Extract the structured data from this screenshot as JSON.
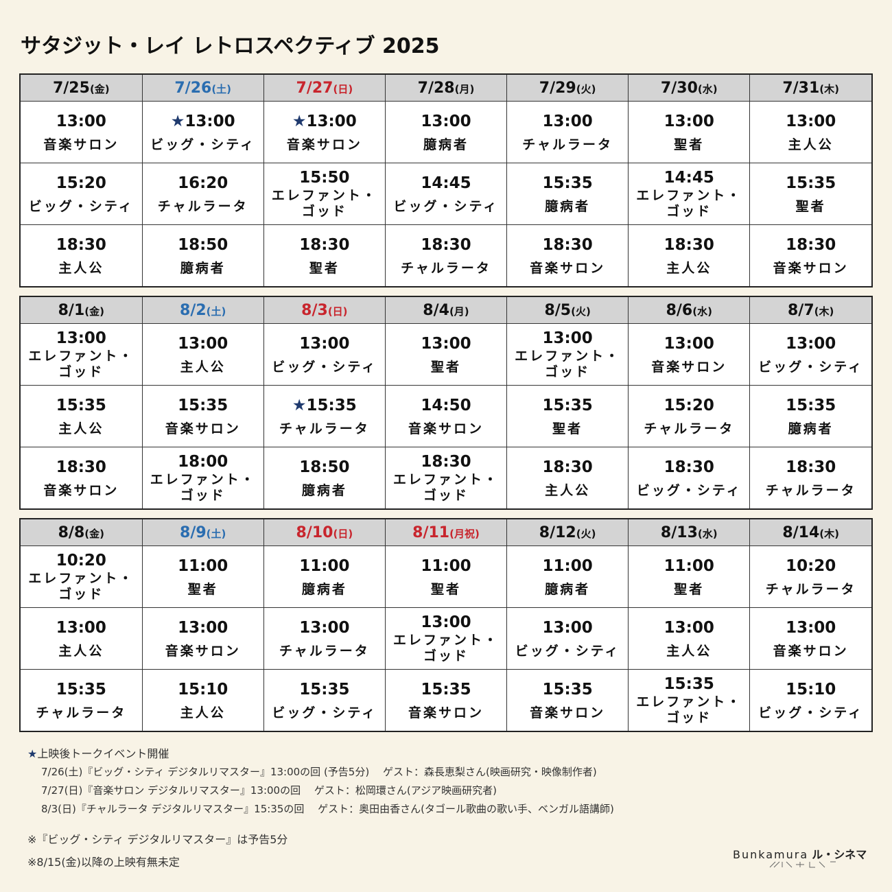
{
  "title": "サタジット・レイ レトロスペクティブ 2025",
  "weeks": [
    {
      "days": [
        {
          "date": "7/25",
          "dow": "(金)",
          "type": "weekday"
        },
        {
          "date": "7/26",
          "dow": "(土)",
          "type": "sat"
        },
        {
          "date": "7/27",
          "dow": "(日)",
          "type": "sun"
        },
        {
          "date": "7/28",
          "dow": "(月)",
          "type": "weekday"
        },
        {
          "date": "7/29",
          "dow": "(火)",
          "type": "weekday"
        },
        {
          "date": "7/30",
          "dow": "(水)",
          "type": "weekday"
        },
        {
          "date": "7/31",
          "dow": "(木)",
          "type": "weekday"
        }
      ],
      "slots": [
        [
          {
            "star": "",
            "time": "13:00",
            "title": [
              "音楽サロン"
            ]
          },
          {
            "star": "★",
            "time": "13:00",
            "title": [
              "ビッグ・シティ"
            ]
          },
          {
            "star": "★",
            "time": "13:00",
            "title": [
              "音楽サロン"
            ]
          },
          {
            "star": "",
            "time": "13:00",
            "title": [
              "臆病者"
            ]
          },
          {
            "star": "",
            "time": "13:00",
            "title": [
              "チャルラータ"
            ]
          },
          {
            "star": "",
            "time": "13:00",
            "title": [
              "聖者"
            ]
          },
          {
            "star": "",
            "time": "13:00",
            "title": [
              "主人公"
            ]
          }
        ],
        [
          {
            "star": "",
            "time": "15:20",
            "title": [
              "ビッグ・シティ"
            ]
          },
          {
            "star": "",
            "time": "16:20",
            "title": [
              "チャルラータ"
            ]
          },
          {
            "star": "",
            "time": "15:50",
            "title": [
              "エレファント・",
              "ゴッド"
            ]
          },
          {
            "star": "",
            "time": "14:45",
            "title": [
              "ビッグ・シティ"
            ]
          },
          {
            "star": "",
            "time": "15:35",
            "title": [
              "臆病者"
            ]
          },
          {
            "star": "",
            "time": "14:45",
            "title": [
              "エレファント・",
              "ゴッド"
            ]
          },
          {
            "star": "",
            "time": "15:35",
            "title": [
              "聖者"
            ]
          }
        ],
        [
          {
            "star": "",
            "time": "18:30",
            "title": [
              "主人公"
            ]
          },
          {
            "star": "",
            "time": "18:50",
            "title": [
              "臆病者"
            ]
          },
          {
            "star": "",
            "time": "18:30",
            "title": [
              "聖者"
            ]
          },
          {
            "star": "",
            "time": "18:30",
            "title": [
              "チャルラータ"
            ]
          },
          {
            "star": "",
            "time": "18:30",
            "title": [
              "音楽サロン"
            ]
          },
          {
            "star": "",
            "time": "18:30",
            "title": [
              "主人公"
            ]
          },
          {
            "star": "",
            "time": "18:30",
            "title": [
              "音楽サロン"
            ]
          }
        ]
      ]
    },
    {
      "days": [
        {
          "date": "8/1",
          "dow": "(金)",
          "type": "weekday"
        },
        {
          "date": "8/2",
          "dow": "(土)",
          "type": "sat"
        },
        {
          "date": "8/3",
          "dow": "(日)",
          "type": "sun"
        },
        {
          "date": "8/4",
          "dow": "(月)",
          "type": "weekday"
        },
        {
          "date": "8/5",
          "dow": "(火)",
          "type": "weekday"
        },
        {
          "date": "8/6",
          "dow": "(水)",
          "type": "weekday"
        },
        {
          "date": "8/7",
          "dow": "(木)",
          "type": "weekday"
        }
      ],
      "slots": [
        [
          {
            "star": "",
            "time": "13:00",
            "title": [
              "エレファント・",
              "ゴッド"
            ]
          },
          {
            "star": "",
            "time": "13:00",
            "title": [
              "主人公"
            ]
          },
          {
            "star": "",
            "time": "13:00",
            "title": [
              "ビッグ・シティ"
            ]
          },
          {
            "star": "",
            "time": "13:00",
            "title": [
              "聖者"
            ]
          },
          {
            "star": "",
            "time": "13:00",
            "title": [
              "エレファント・",
              "ゴッド"
            ]
          },
          {
            "star": "",
            "time": "13:00",
            "title": [
              "音楽サロン"
            ]
          },
          {
            "star": "",
            "time": "13:00",
            "title": [
              "ビッグ・シティ"
            ]
          }
        ],
        [
          {
            "star": "",
            "time": "15:35",
            "title": [
              "主人公"
            ]
          },
          {
            "star": "",
            "time": "15:35",
            "title": [
              "音楽サロン"
            ]
          },
          {
            "star": "★",
            "time": "15:35",
            "title": [
              "チャルラータ"
            ]
          },
          {
            "star": "",
            "time": "14:50",
            "title": [
              "音楽サロン"
            ]
          },
          {
            "star": "",
            "time": "15:35",
            "title": [
              "聖者"
            ]
          },
          {
            "star": "",
            "time": "15:20",
            "title": [
              "チャルラータ"
            ]
          },
          {
            "star": "",
            "time": "15:35",
            "title": [
              "臆病者"
            ]
          }
        ],
        [
          {
            "star": "",
            "time": "18:30",
            "title": [
              "音楽サロン"
            ]
          },
          {
            "star": "",
            "time": "18:00",
            "title": [
              "エレファント・",
              "ゴッド"
            ]
          },
          {
            "star": "",
            "time": "18:50",
            "title": [
              "臆病者"
            ]
          },
          {
            "star": "",
            "time": "18:30",
            "title": [
              "エレファント・",
              "ゴッド"
            ]
          },
          {
            "star": "",
            "time": "18:30",
            "title": [
              "主人公"
            ]
          },
          {
            "star": "",
            "time": "18:30",
            "title": [
              "ビッグ・シティ"
            ]
          },
          {
            "star": "",
            "time": "18:30",
            "title": [
              "チャルラータ"
            ]
          }
        ]
      ]
    },
    {
      "days": [
        {
          "date": "8/8",
          "dow": "(金)",
          "type": "weekday"
        },
        {
          "date": "8/9",
          "dow": "(土)",
          "type": "sat"
        },
        {
          "date": "8/10",
          "dow": "(日)",
          "type": "sun"
        },
        {
          "date": "8/11",
          "dow": "(月祝)",
          "type": "sun"
        },
        {
          "date": "8/12",
          "dow": "(火)",
          "type": "weekday"
        },
        {
          "date": "8/13",
          "dow": "(水)",
          "type": "weekday"
        },
        {
          "date": "8/14",
          "dow": "(木)",
          "type": "weekday"
        }
      ],
      "slots": [
        [
          {
            "star": "",
            "time": "10:20",
            "title": [
              "エレファント・",
              "ゴッド"
            ]
          },
          {
            "star": "",
            "time": "11:00",
            "title": [
              "聖者"
            ]
          },
          {
            "star": "",
            "time": "11:00",
            "title": [
              "臆病者"
            ]
          },
          {
            "star": "",
            "time": "11:00",
            "title": [
              "聖者"
            ]
          },
          {
            "star": "",
            "time": "11:00",
            "title": [
              "臆病者"
            ]
          },
          {
            "star": "",
            "time": "11:00",
            "title": [
              "聖者"
            ]
          },
          {
            "star": "",
            "time": "10:20",
            "title": [
              "チャルラータ"
            ]
          }
        ],
        [
          {
            "star": "",
            "time": "13:00",
            "title": [
              "主人公"
            ]
          },
          {
            "star": "",
            "time": "13:00",
            "title": [
              "音楽サロン"
            ]
          },
          {
            "star": "",
            "time": "13:00",
            "title": [
              "チャルラータ"
            ]
          },
          {
            "star": "",
            "time": "13:00",
            "title": [
              "エレファント・",
              "ゴッド"
            ]
          },
          {
            "star": "",
            "time": "13:00",
            "title": [
              "ビッグ・シティ"
            ]
          },
          {
            "star": "",
            "time": "13:00",
            "title": [
              "主人公"
            ]
          },
          {
            "star": "",
            "time": "13:00",
            "title": [
              "音楽サロン"
            ]
          }
        ],
        [
          {
            "star": "",
            "time": "15:35",
            "title": [
              "チャルラータ"
            ]
          },
          {
            "star": "",
            "time": "15:10",
            "title": [
              "主人公"
            ]
          },
          {
            "star": "",
            "time": "15:35",
            "title": [
              "ビッグ・シティ"
            ]
          },
          {
            "star": "",
            "time": "15:35",
            "title": [
              "音楽サロン"
            ]
          },
          {
            "star": "",
            "time": "15:35",
            "title": [
              "音楽サロン"
            ]
          },
          {
            "star": "",
            "time": "15:35",
            "title": [
              "エレファント・",
              "ゴッド"
            ]
          },
          {
            "star": "",
            "time": "15:10",
            "title": [
              "ビッグ・シティ"
            ]
          }
        ]
      ]
    }
  ],
  "notes": {
    "star": "★",
    "event_heading": "上映後トークイベント開催",
    "events": [
      "7/26(土)『ビッグ・シティ デジタルリマスター』13:00の回 (予告5分)　 ゲスト：森長恵梨さん(映画研究・映像制作者)",
      "7/27(日)『音楽サロン デジタルリマスター』13:00の回　 ゲスト：松岡環さん(アジア映画研究者)",
      "8/3(日)『チャルラータ デジタルリマスター』15:35の回　 ゲスト：奥田由香さん(タゴール歌曲の歌い手、ベンガル語講師)"
    ],
    "footnote1": "※『ビッグ・シティ デジタルリマスター』は予告5分",
    "footnote2": "※8/15(金)以降の上映有無未定"
  },
  "logo": {
    "brand": "Bunkamura",
    "name": "ル・シネマ",
    "color": "#222222"
  },
  "colors": {
    "saturday": "#2a6db0",
    "sunday_holiday": "#c8252d",
    "star": "#1f3a6e",
    "background": "#f8f3e6",
    "header_bg": "#d4d4d4"
  }
}
